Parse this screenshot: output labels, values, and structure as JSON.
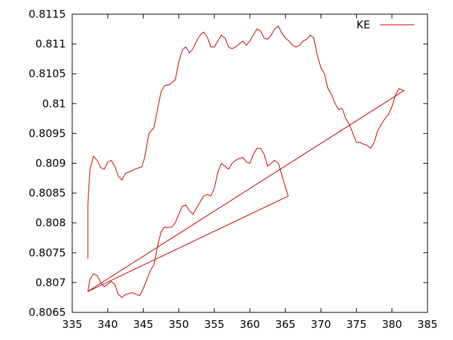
{
  "chart_data": {
    "type": "line",
    "title": "",
    "xlabel": "",
    "ylabel": "",
    "xlim": [
      335,
      385
    ],
    "ylim": [
      0.8065,
      0.8115
    ],
    "x_ticks": [
      335,
      340,
      345,
      350,
      355,
      360,
      365,
      370,
      375,
      380,
      385
    ],
    "y_ticks": [
      0.8065,
      0.807,
      0.8075,
      0.808,
      0.8085,
      0.809,
      0.8095,
      0.81,
      0.8105,
      0.811,
      0.8115
    ],
    "x_tick_labels": [
      "335",
      "340",
      "345",
      "350",
      "355",
      "360",
      "365",
      "370",
      "375",
      "380",
      "385"
    ],
    "y_tick_labels": [
      "0.8065",
      "0.807",
      "0.8075",
      "0.808",
      "0.8085",
      "0.809",
      "0.8095",
      "0.81",
      "0.8105",
      "0.811",
      "0.8115"
    ],
    "grid": false,
    "legend_position": "top-right",
    "series": [
      {
        "name": "KE",
        "color": "#c00000",
        "points": [
          [
            337.2,
            0.8074
          ],
          [
            337.2,
            0.8083
          ],
          [
            337.5,
            0.8089
          ],
          [
            338.0,
            0.80912
          ],
          [
            338.5,
            0.80905
          ],
          [
            339.0,
            0.80893
          ],
          [
            339.5,
            0.8089
          ],
          [
            340.0,
            0.80902
          ],
          [
            340.5,
            0.80905
          ],
          [
            341.0,
            0.80895
          ],
          [
            341.5,
            0.80878
          ],
          [
            342.0,
            0.80872
          ],
          [
            342.5,
            0.80883
          ],
          [
            343.5,
            0.80888
          ],
          [
            344.0,
            0.80891
          ],
          [
            344.8,
            0.80894
          ],
          [
            345.2,
            0.8091
          ],
          [
            345.8,
            0.8095
          ],
          [
            346.5,
            0.8096
          ],
          [
            347.0,
            0.8099
          ],
          [
            347.5,
            0.8102
          ],
          [
            348.0,
            0.8103
          ],
          [
            348.7,
            0.81032
          ],
          [
            349.5,
            0.8104
          ],
          [
            350.0,
            0.8107
          ],
          [
            350.5,
            0.8109
          ],
          [
            351.0,
            0.81095
          ],
          [
            351.5,
            0.81085
          ],
          [
            352.0,
            0.81092
          ],
          [
            352.5,
            0.81105
          ],
          [
            353.0,
            0.81115
          ],
          [
            353.5,
            0.8112
          ],
          [
            354.0,
            0.81112
          ],
          [
            354.5,
            0.81095
          ],
          [
            355.0,
            0.81095
          ],
          [
            355.5,
            0.81105
          ],
          [
            356.0,
            0.81115
          ],
          [
            356.5,
            0.8111
          ],
          [
            357.0,
            0.81095
          ],
          [
            357.5,
            0.81092
          ],
          [
            358.0,
            0.81095
          ],
          [
            358.5,
            0.811
          ],
          [
            359.0,
            0.81105
          ],
          [
            359.5,
            0.81098
          ],
          [
            360.0,
            0.81105
          ],
          [
            360.5,
            0.81115
          ],
          [
            361.0,
            0.81125
          ],
          [
            361.5,
            0.81122
          ],
          [
            362.0,
            0.8111
          ],
          [
            362.5,
            0.81108
          ],
          [
            363.0,
            0.81115
          ],
          [
            363.5,
            0.81125
          ],
          [
            364.0,
            0.8113
          ],
          [
            364.5,
            0.81118
          ],
          [
            365.0,
            0.8111
          ],
          [
            365.5,
            0.81105
          ],
          [
            366.0,
            0.81098
          ],
          [
            366.5,
            0.81095
          ],
          [
            367.0,
            0.81098
          ],
          [
            367.5,
            0.81105
          ],
          [
            368.0,
            0.81108
          ],
          [
            368.5,
            0.81115
          ],
          [
            369.0,
            0.8111
          ],
          [
            369.5,
            0.8108
          ],
          [
            370.0,
            0.8106
          ],
          [
            370.5,
            0.8105
          ],
          [
            371.0,
            0.81025
          ],
          [
            371.5,
            0.81015
          ],
          [
            372.0,
            0.81
          ],
          [
            372.5,
            0.8099
          ],
          [
            373.0,
            0.80992
          ],
          [
            373.5,
            0.80975
          ],
          [
            374.0,
            0.80965
          ],
          [
            374.5,
            0.8095
          ],
          [
            375.0,
            0.80935
          ],
          [
            375.5,
            0.80935
          ],
          [
            376.0,
            0.80932
          ],
          [
            376.5,
            0.8093
          ],
          [
            377.0,
            0.80925
          ],
          [
            377.5,
            0.80935
          ],
          [
            378.0,
            0.80955
          ],
          [
            378.5,
            0.80965
          ],
          [
            379.0,
            0.80975
          ],
          [
            379.5,
            0.80982
          ],
          [
            380.0,
            0.80995
          ],
          [
            380.5,
            0.81015
          ],
          [
            381.0,
            0.81025
          ],
          [
            381.7,
            0.81022
          ],
          [
            337.2,
            0.80685
          ],
          [
            337.5,
            0.80705
          ],
          [
            338.0,
            0.80715
          ],
          [
            338.5,
            0.80712
          ],
          [
            339.0,
            0.807
          ],
          [
            339.5,
            0.80693
          ],
          [
            340.0,
            0.80697
          ],
          [
            340.5,
            0.80702
          ],
          [
            341.0,
            0.80697
          ],
          [
            341.5,
            0.8068
          ],
          [
            342.0,
            0.80675
          ],
          [
            342.5,
            0.8068
          ],
          [
            343.5,
            0.80683
          ],
          [
            344.0,
            0.8068
          ],
          [
            344.5,
            0.80678
          ],
          [
            345.0,
            0.8069
          ],
          [
            345.5,
            0.80705
          ],
          [
            346.0,
            0.8072
          ],
          [
            346.5,
            0.8073
          ],
          [
            347.0,
            0.8076
          ],
          [
            347.5,
            0.80785
          ],
          [
            348.0,
            0.80793
          ],
          [
            348.5,
            0.80792
          ],
          [
            349.0,
            0.80793
          ],
          [
            349.5,
            0.808
          ],
          [
            350.0,
            0.80815
          ],
          [
            350.5,
            0.80828
          ],
          [
            351.0,
            0.8083
          ],
          [
            351.5,
            0.8082
          ],
          [
            352.0,
            0.80815
          ],
          [
            352.5,
            0.80825
          ],
          [
            353.0,
            0.80835
          ],
          [
            353.5,
            0.80845
          ],
          [
            354.0,
            0.80848
          ],
          [
            354.5,
            0.80845
          ],
          [
            355.0,
            0.80858
          ],
          [
            355.5,
            0.80885
          ],
          [
            356.0,
            0.809
          ],
          [
            356.5,
            0.80895
          ],
          [
            357.0,
            0.8089
          ],
          [
            357.5,
            0.809
          ],
          [
            358.0,
            0.80905
          ],
          [
            358.5,
            0.80908
          ],
          [
            359.0,
            0.8091
          ],
          [
            359.5,
            0.80902
          ],
          [
            360.0,
            0.809
          ],
          [
            360.5,
            0.80915
          ],
          [
            361.0,
            0.80925
          ],
          [
            361.5,
            0.80925
          ],
          [
            362.0,
            0.80915
          ],
          [
            362.5,
            0.80895
          ],
          [
            363.0,
            0.809
          ],
          [
            363.5,
            0.80905
          ],
          [
            364.0,
            0.809
          ],
          [
            364.5,
            0.8088
          ],
          [
            365.0,
            0.8086
          ],
          [
            365.4,
            0.80845
          ],
          [
            337.2,
            0.80685
          ],
          [
            381.7,
            0.81022
          ]
        ]
      }
    ]
  }
}
